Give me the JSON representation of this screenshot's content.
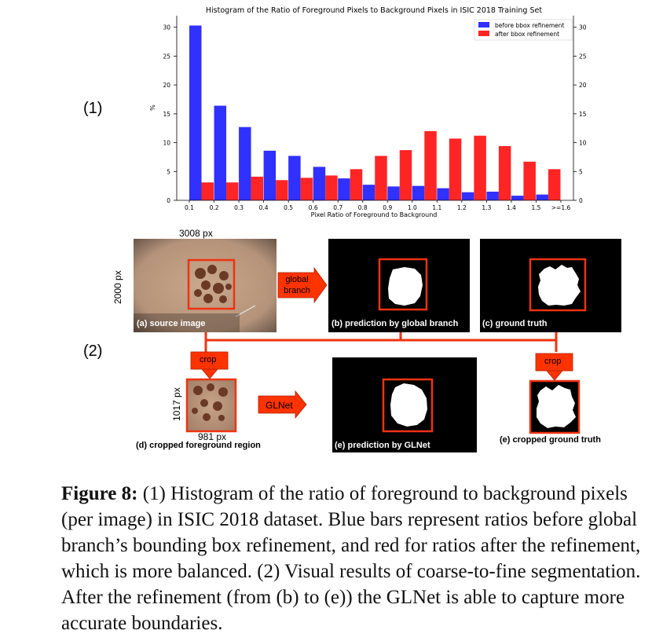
{
  "parts": {
    "part1": "(1)",
    "part2": "(2)"
  },
  "chart_data": {
    "type": "bar",
    "title": "Histogram of the Ratio of Foreground Pixels to Background Pixels in ISIC 2018 Training Set",
    "xlabel": "Pixel Ratio of Foreground to Background",
    "ylabel": "%",
    "ylim": [
      0,
      32
    ],
    "yticks": [
      0,
      5,
      10,
      15,
      20,
      25,
      30
    ],
    "categories": [
      "0.1",
      "0.2",
      "0.3",
      "0.4",
      "0.5",
      "0.6",
      "0.7",
      "0.8",
      "0.9",
      "1.0",
      "1.1",
      "1.2",
      "1.3",
      "1.4",
      "1.5",
      ">=1.6"
    ],
    "series": [
      {
        "name": "before bbox refinement",
        "color": "#3030ff",
        "values": [
          30.3,
          16.4,
          12.7,
          8.6,
          7.7,
          5.8,
          3.8,
          2.7,
          2.4,
          2.5,
          2.1,
          1.4,
          1.5,
          0.8,
          1.0,
          null
        ]
      },
      {
        "name": "after bbox refinement",
        "color": "#ff2525",
        "values": [
          3.1,
          3.1,
          4.1,
          3.5,
          3.9,
          4.3,
          5.4,
          7.7,
          8.7,
          12.0,
          10.7,
          11.2,
          9.4,
          6.7,
          5.4,
          null
        ]
      }
    ],
    "legend_position": "top-right"
  },
  "figure": {
    "dim_width": "3008 px",
    "dim_height": "2000 px",
    "crop_dim_height": "1017 px",
    "crop_dim_width": "981 px",
    "arrow_global": "global branch",
    "arrow_glnet": "GLNet",
    "crop_left": "crop",
    "crop_right": "crop",
    "label_a": "(a) source image",
    "label_b": "(b) prediction by global branch",
    "label_c": "(c) ground truth",
    "label_d": "(d) cropped foreground region",
    "label_e_pred": "(e) prediction by GLNet",
    "label_e_gt": "(e) cropped ground truth",
    "colors": {
      "accent": "#ff3300",
      "box": "#ee3311"
    }
  },
  "caption": {
    "lead": "Figure 8:",
    "text": " (1) Histogram of the ratio of foreground to background pixels (per image) in ISIC 2018 dataset. Blue bars represent ratios before global branch’s bounding box refinement, and red for ratios after the refinement, which is more balanced. (2) Visual results of coarse-to-fine segmentation. After the refinement (from (b) to (e)) the GLNet is able to capture more accurate boundaries."
  }
}
